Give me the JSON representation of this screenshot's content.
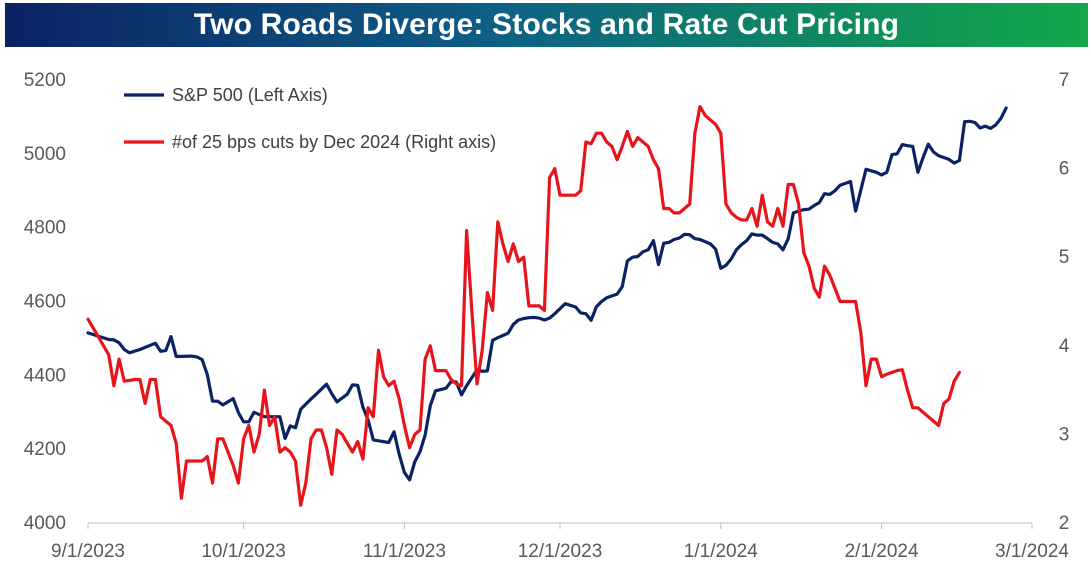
{
  "chart_data": {
    "type": "line",
    "title": "Two Roads Diverge: Stocks and Rate Cut Pricing",
    "x_ticks": [
      "9/1/2023",
      "10/1/2023",
      "11/1/2023",
      "12/1/2023",
      "1/1/2024",
      "2/1/2024",
      "3/1/2024"
    ],
    "x_range_days": [
      0,
      182
    ],
    "left_axis": {
      "ticks": [
        "4000",
        "4200",
        "4400",
        "4600",
        "4800",
        "5000",
        "5200"
      ],
      "ylim": [
        4000,
        5200
      ]
    },
    "right_axis": {
      "ticks": [
        "2",
        "3",
        "4",
        "5",
        "6",
        "7"
      ],
      "ylim": [
        2,
        7
      ]
    },
    "series": [
      {
        "name": "S&P 500 (Left Axis)",
        "axis": "left",
        "color": "#0b2265",
        "points": [
          [
            0,
            4515
          ],
          [
            4,
            4497
          ],
          [
            5,
            4496
          ],
          [
            6,
            4488
          ],
          [
            7,
            4470
          ],
          [
            8,
            4461
          ],
          [
            10,
            4470
          ],
          [
            13,
            4487
          ],
          [
            14,
            4465
          ],
          [
            15,
            4467
          ],
          [
            16,
            4505
          ],
          [
            17,
            4451
          ],
          [
            20,
            4452
          ],
          [
            21,
            4450
          ],
          [
            22,
            4443
          ],
          [
            23,
            4402
          ],
          [
            24,
            4330
          ],
          [
            25,
            4330
          ],
          [
            26,
            4320
          ],
          [
            28,
            4337
          ],
          [
            29,
            4299
          ],
          [
            30,
            4274
          ],
          [
            31,
            4274
          ],
          [
            32,
            4300
          ],
          [
            34,
            4288
          ],
          [
            37,
            4288
          ],
          [
            38,
            4229
          ],
          [
            39,
            4263
          ],
          [
            40,
            4258
          ],
          [
            41,
            4308
          ],
          [
            43,
            4336
          ],
          [
            44,
            4349
          ],
          [
            46,
            4376
          ],
          [
            47,
            4350
          ],
          [
            48,
            4328
          ],
          [
            50,
            4349
          ],
          [
            51,
            4374
          ],
          [
            52,
            4373
          ],
          [
            53,
            4314
          ],
          [
            54,
            4279
          ],
          [
            55,
            4225
          ],
          [
            58,
            4218
          ],
          [
            59,
            4247
          ],
          [
            60,
            4186
          ],
          [
            61,
            4137
          ],
          [
            62,
            4117
          ],
          [
            63,
            4166
          ],
          [
            64,
            4193
          ],
          [
            65,
            4238
          ],
          [
            66,
            4318
          ],
          [
            67,
            4358
          ],
          [
            69,
            4365
          ],
          [
            70,
            4383
          ],
          [
            71,
            4382
          ],
          [
            72,
            4347
          ],
          [
            73,
            4372
          ],
          [
            75,
            4415
          ],
          [
            76,
            4411
          ],
          [
            77,
            4412
          ],
          [
            78,
            4495
          ],
          [
            79,
            4502
          ],
          [
            80,
            4508
          ],
          [
            81,
            4514
          ],
          [
            82,
            4538
          ],
          [
            83,
            4550
          ],
          [
            84,
            4554
          ],
          [
            85,
            4556
          ],
          [
            86,
            4557
          ],
          [
            87,
            4555
          ],
          [
            88,
            4550
          ],
          [
            89,
            4555
          ],
          [
            90,
            4567
          ],
          [
            92,
            4594
          ],
          [
            94,
            4585
          ],
          [
            95,
            4569
          ],
          [
            96,
            4567
          ],
          [
            97,
            4549
          ],
          [
            98,
            4585
          ],
          [
            99,
            4600
          ],
          [
            100,
            4610
          ],
          [
            102,
            4620
          ],
          [
            103,
            4640
          ],
          [
            104,
            4710
          ],
          [
            105,
            4720
          ],
          [
            106,
            4722
          ],
          [
            107,
            4735
          ],
          [
            108,
            4740
          ],
          [
            109,
            4765
          ],
          [
            110,
            4700
          ],
          [
            111,
            4758
          ],
          [
            112,
            4760
          ],
          [
            113,
            4768
          ],
          [
            114,
            4772
          ],
          [
            115,
            4782
          ],
          [
            116,
            4781
          ],
          [
            117,
            4770
          ],
          [
            118,
            4768
          ],
          [
            120,
            4756
          ],
          [
            121,
            4742
          ],
          [
            122,
            4690
          ],
          [
            123,
            4698
          ],
          [
            124,
            4715
          ],
          [
            125,
            4740
          ],
          [
            126,
            4754
          ],
          [
            127,
            4765
          ],
          [
            128,
            4783
          ],
          [
            129,
            4780
          ],
          [
            130,
            4780
          ],
          [
            131,
            4770
          ],
          [
            132,
            4760
          ],
          [
            133,
            4756
          ],
          [
            134,
            4740
          ],
          [
            135,
            4770
          ],
          [
            136,
            4840
          ],
          [
            137,
            4845
          ],
          [
            138,
            4849
          ],
          [
            139,
            4850
          ],
          [
            140,
            4860
          ],
          [
            141,
            4868
          ],
          [
            142,
            4892
          ],
          [
            143,
            4890
          ],
          [
            144,
            4900
          ],
          [
            145,
            4915
          ],
          [
            146,
            4920
          ],
          [
            147,
            4925
          ],
          [
            148,
            4845
          ],
          [
            150,
            4958
          ],
          [
            151,
            4954
          ],
          [
            152,
            4950
          ],
          [
            153,
            4943
          ],
          [
            154,
            4950
          ],
          [
            155,
            4998
          ],
          [
            156,
            5000
          ],
          [
            157,
            5025
          ],
          [
            158,
            5022
          ],
          [
            159,
            5020
          ],
          [
            160,
            4950
          ],
          [
            161,
            4990
          ],
          [
            162,
            5026
          ],
          [
            163,
            5005
          ],
          [
            164,
            4995
          ],
          [
            165,
            4990
          ],
          [
            166,
            4985
          ],
          [
            167,
            4975
          ],
          [
            168,
            4982
          ],
          [
            169,
            5087
          ],
          [
            170,
            5088
          ],
          [
            171,
            5085
          ],
          [
            172,
            5070
          ],
          [
            173,
            5075
          ],
          [
            174,
            5069
          ],
          [
            175,
            5078
          ],
          [
            176,
            5096
          ],
          [
            177,
            5124
          ]
        ]
      },
      {
        "name": "#of 25 bps cuts by Dec 2024 (Right axis)",
        "axis": "right",
        "color": "#e8141c",
        "points": [
          [
            0,
            4.3
          ],
          [
            2,
            4.1
          ],
          [
            4,
            3.9
          ],
          [
            5,
            3.55
          ],
          [
            6,
            3.85
          ],
          [
            7,
            3.6
          ],
          [
            9,
            3.62
          ],
          [
            10,
            3.62
          ],
          [
            11,
            3.35
          ],
          [
            12,
            3.62
          ],
          [
            13,
            3.62
          ],
          [
            14,
            3.2
          ],
          [
            15,
            3.15
          ],
          [
            16,
            3.1
          ],
          [
            17,
            2.9
          ],
          [
            18,
            2.28
          ],
          [
            19,
            2.7
          ],
          [
            20,
            2.7
          ],
          [
            21,
            2.7
          ],
          [
            22,
            2.7
          ],
          [
            23,
            2.75
          ],
          [
            24,
            2.45
          ],
          [
            25,
            2.95
          ],
          [
            26,
            2.95
          ],
          [
            27,
            2.8
          ],
          [
            28,
            2.65
          ],
          [
            29,
            2.45
          ],
          [
            30,
            2.95
          ],
          [
            31,
            3.1
          ],
          [
            32,
            2.8
          ],
          [
            33,
            3.0
          ],
          [
            34,
            3.5
          ],
          [
            35,
            3.1
          ],
          [
            36,
            3.2
          ],
          [
            37,
            2.8
          ],
          [
            38,
            2.85
          ],
          [
            39,
            2.8
          ],
          [
            40,
            2.7
          ],
          [
            41,
            2.2
          ],
          [
            42,
            2.45
          ],
          [
            43,
            2.95
          ],
          [
            44,
            3.05
          ],
          [
            45,
            3.05
          ],
          [
            46,
            2.85
          ],
          [
            47,
            2.55
          ],
          [
            48,
            3.05
          ],
          [
            49,
            3.0
          ],
          [
            50,
            2.9
          ],
          [
            51,
            2.8
          ],
          [
            52,
            2.92
          ],
          [
            53,
            2.72
          ],
          [
            54,
            3.3
          ],
          [
            55,
            3.2
          ],
          [
            56,
            3.95
          ],
          [
            57,
            3.65
          ],
          [
            58,
            3.55
          ],
          [
            59,
            3.6
          ],
          [
            60,
            3.4
          ],
          [
            61,
            3.1
          ],
          [
            62,
            2.85
          ],
          [
            63,
            3.0
          ],
          [
            64,
            3.05
          ],
          [
            65,
            3.85
          ],
          [
            66,
            4.0
          ],
          [
            67,
            3.72
          ],
          [
            68,
            3.72
          ],
          [
            69,
            3.72
          ],
          [
            70,
            3.62
          ],
          [
            71,
            3.57
          ],
          [
            72,
            3.55
          ],
          [
            73,
            5.3
          ],
          [
            74,
            4.4
          ],
          [
            75,
            3.57
          ],
          [
            76,
            3.95
          ],
          [
            77,
            4.6
          ],
          [
            78,
            4.4
          ],
          [
            79,
            5.4
          ],
          [
            80,
            5.15
          ],
          [
            81,
            4.95
          ],
          [
            82,
            5.15
          ],
          [
            83,
            4.95
          ],
          [
            84,
            5.0
          ],
          [
            85,
            4.45
          ],
          [
            86,
            4.45
          ],
          [
            87,
            4.45
          ],
          [
            88,
            4.4
          ],
          [
            89,
            5.9
          ],
          [
            90,
            6.0
          ],
          [
            91,
            5.7
          ],
          [
            92,
            5.7
          ],
          [
            93,
            5.7
          ],
          [
            94,
            5.7
          ],
          [
            95,
            5.75
          ],
          [
            96,
            6.3
          ],
          [
            97,
            6.28
          ],
          [
            98,
            6.4
          ],
          [
            99,
            6.4
          ],
          [
            100,
            6.3
          ],
          [
            101,
            6.25
          ],
          [
            102,
            6.1
          ],
          [
            103,
            6.25
          ],
          [
            104,
            6.42
          ],
          [
            105,
            6.25
          ],
          [
            106,
            6.35
          ],
          [
            107,
            6.3
          ],
          [
            108,
            6.25
          ],
          [
            109,
            6.1
          ],
          [
            110,
            6.0
          ],
          [
            111,
            5.55
          ],
          [
            112,
            5.55
          ],
          [
            113,
            5.5
          ],
          [
            114,
            5.5
          ],
          [
            115,
            5.55
          ],
          [
            116,
            5.6
          ],
          [
            117,
            6.4
          ],
          [
            118,
            6.7
          ],
          [
            119,
            6.6
          ],
          [
            120,
            6.55
          ],
          [
            121,
            6.5
          ],
          [
            122,
            6.4
          ],
          [
            123,
            5.6
          ],
          [
            124,
            5.5
          ],
          [
            125,
            5.45
          ],
          [
            126,
            5.42
          ],
          [
            127,
            5.42
          ],
          [
            128,
            5.55
          ],
          [
            129,
            5.35
          ],
          [
            130,
            5.7
          ],
          [
            131,
            5.4
          ],
          [
            132,
            5.35
          ],
          [
            133,
            5.55
          ],
          [
            134,
            5.35
          ],
          [
            135,
            5.82
          ],
          [
            136,
            5.82
          ],
          [
            137,
            5.6
          ],
          [
            138,
            5.05
          ],
          [
            139,
            4.9
          ],
          [
            140,
            4.65
          ],
          [
            141,
            4.55
          ],
          [
            142,
            4.9
          ],
          [
            143,
            4.8
          ],
          [
            144,
            4.65
          ],
          [
            145,
            4.5
          ],
          [
            146,
            4.5
          ],
          [
            147,
            4.5
          ],
          [
            148,
            4.5
          ],
          [
            149,
            4.15
          ],
          [
            150,
            3.55
          ],
          [
            151,
            3.85
          ],
          [
            152,
            3.85
          ],
          [
            153,
            3.65
          ],
          [
            154,
            3.68
          ],
          [
            155,
            3.7
          ],
          [
            156,
            3.72
          ],
          [
            157,
            3.73
          ],
          [
            158,
            3.5
          ],
          [
            159,
            3.3
          ],
          [
            160,
            3.3
          ],
          [
            161,
            3.25
          ],
          [
            162,
            3.2
          ],
          [
            163,
            3.15
          ],
          [
            164,
            3.1
          ],
          [
            165,
            3.35
          ],
          [
            166,
            3.4
          ],
          [
            167,
            3.6
          ],
          [
            168,
            3.7
          ]
        ]
      }
    ]
  }
}
